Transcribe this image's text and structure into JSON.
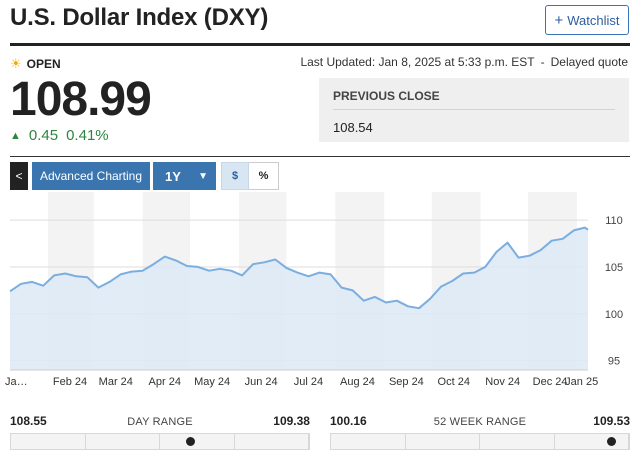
{
  "header": {
    "title": "U.S. Dollar Index (DXY)",
    "watchlist_label": "Watchlist"
  },
  "status": {
    "label": "OPEN",
    "last_updated": "Last Updated: Jan 8, 2025 at 5:33 p.m. EST",
    "delay_note": "Delayed quote"
  },
  "quote": {
    "price": "108.99",
    "change": "0.45",
    "change_pct": "0.41%"
  },
  "previous_close": {
    "label": "PREVIOUS CLOSE",
    "value": "108.54"
  },
  "toolbar": {
    "collapse_label": "<",
    "advanced_label": "Advanced Charting",
    "range_label": "1Y",
    "dollar_label": "$",
    "percent_label": "%"
  },
  "colors": {
    "line": "#7aaee0",
    "fill": "#dce9f4",
    "up": "#2e8540",
    "button": "#3a75b0"
  },
  "chart_data": {
    "type": "area",
    "title": "",
    "xlabel": "",
    "ylabel": "",
    "x_tick_labels": [
      "Ja…",
      "Feb 24",
      "Mar 24",
      "Apr 24",
      "May 24",
      "Jun 24",
      "Jul 24",
      "Aug 24",
      "Sep 24",
      "Oct 24",
      "Nov 24",
      "Dec 24",
      "Jan 25"
    ],
    "y_ticks": [
      95,
      100,
      105,
      110
    ],
    "ylim": [
      94,
      113
    ],
    "xlim": [
      "2024-01-08",
      "2025-01-08"
    ],
    "grid": true,
    "series": [
      {
        "x": [
          "2024-01-08",
          "2024-01-15",
          "2024-01-22",
          "2024-01-29",
          "2024-02-05",
          "2024-02-12",
          "2024-02-19",
          "2024-02-26",
          "2024-03-04",
          "2024-03-11",
          "2024-03-18",
          "2024-03-25",
          "2024-04-01",
          "2024-04-08",
          "2024-04-15",
          "2024-04-22",
          "2024-04-29",
          "2024-05-06",
          "2024-05-13",
          "2024-05-20",
          "2024-05-27",
          "2024-06-03",
          "2024-06-10",
          "2024-06-17",
          "2024-06-24",
          "2024-07-01",
          "2024-07-08",
          "2024-07-15",
          "2024-07-22",
          "2024-07-29",
          "2024-08-05",
          "2024-08-12",
          "2024-08-19",
          "2024-08-26",
          "2024-09-02",
          "2024-09-09",
          "2024-09-16",
          "2024-09-23",
          "2024-09-30",
          "2024-10-07",
          "2024-10-14",
          "2024-10-21",
          "2024-10-28",
          "2024-11-04",
          "2024-11-11",
          "2024-11-18",
          "2024-11-25",
          "2024-12-02",
          "2024-12-09",
          "2024-12-16",
          "2024-12-23",
          "2024-12-30",
          "2025-01-06",
          "2025-01-08"
        ],
        "values": [
          102.4,
          103.2,
          103.4,
          103.0,
          104.1,
          104.3,
          104.0,
          103.9,
          102.8,
          103.4,
          104.2,
          104.5,
          104.6,
          105.3,
          106.1,
          105.7,
          105.1,
          105.0,
          104.6,
          104.8,
          104.6,
          104.1,
          105.3,
          105.5,
          105.8,
          104.9,
          104.4,
          104.0,
          104.4,
          104.2,
          102.8,
          102.5,
          101.4,
          101.8,
          101.2,
          101.4,
          100.8,
          100.6,
          101.6,
          102.9,
          103.5,
          104.3,
          104.4,
          105.0,
          106.6,
          107.6,
          106.0,
          106.2,
          106.8,
          107.8,
          108.0,
          108.9,
          109.2,
          108.99
        ]
      }
    ]
  },
  "day_range": {
    "low": "108.55",
    "label": "DAY RANGE",
    "high": "109.38",
    "position": 0.6
  },
  "week52_range": {
    "low": "100.16",
    "label": "52 WEEK RANGE",
    "high": "109.53",
    "position": 0.94
  }
}
